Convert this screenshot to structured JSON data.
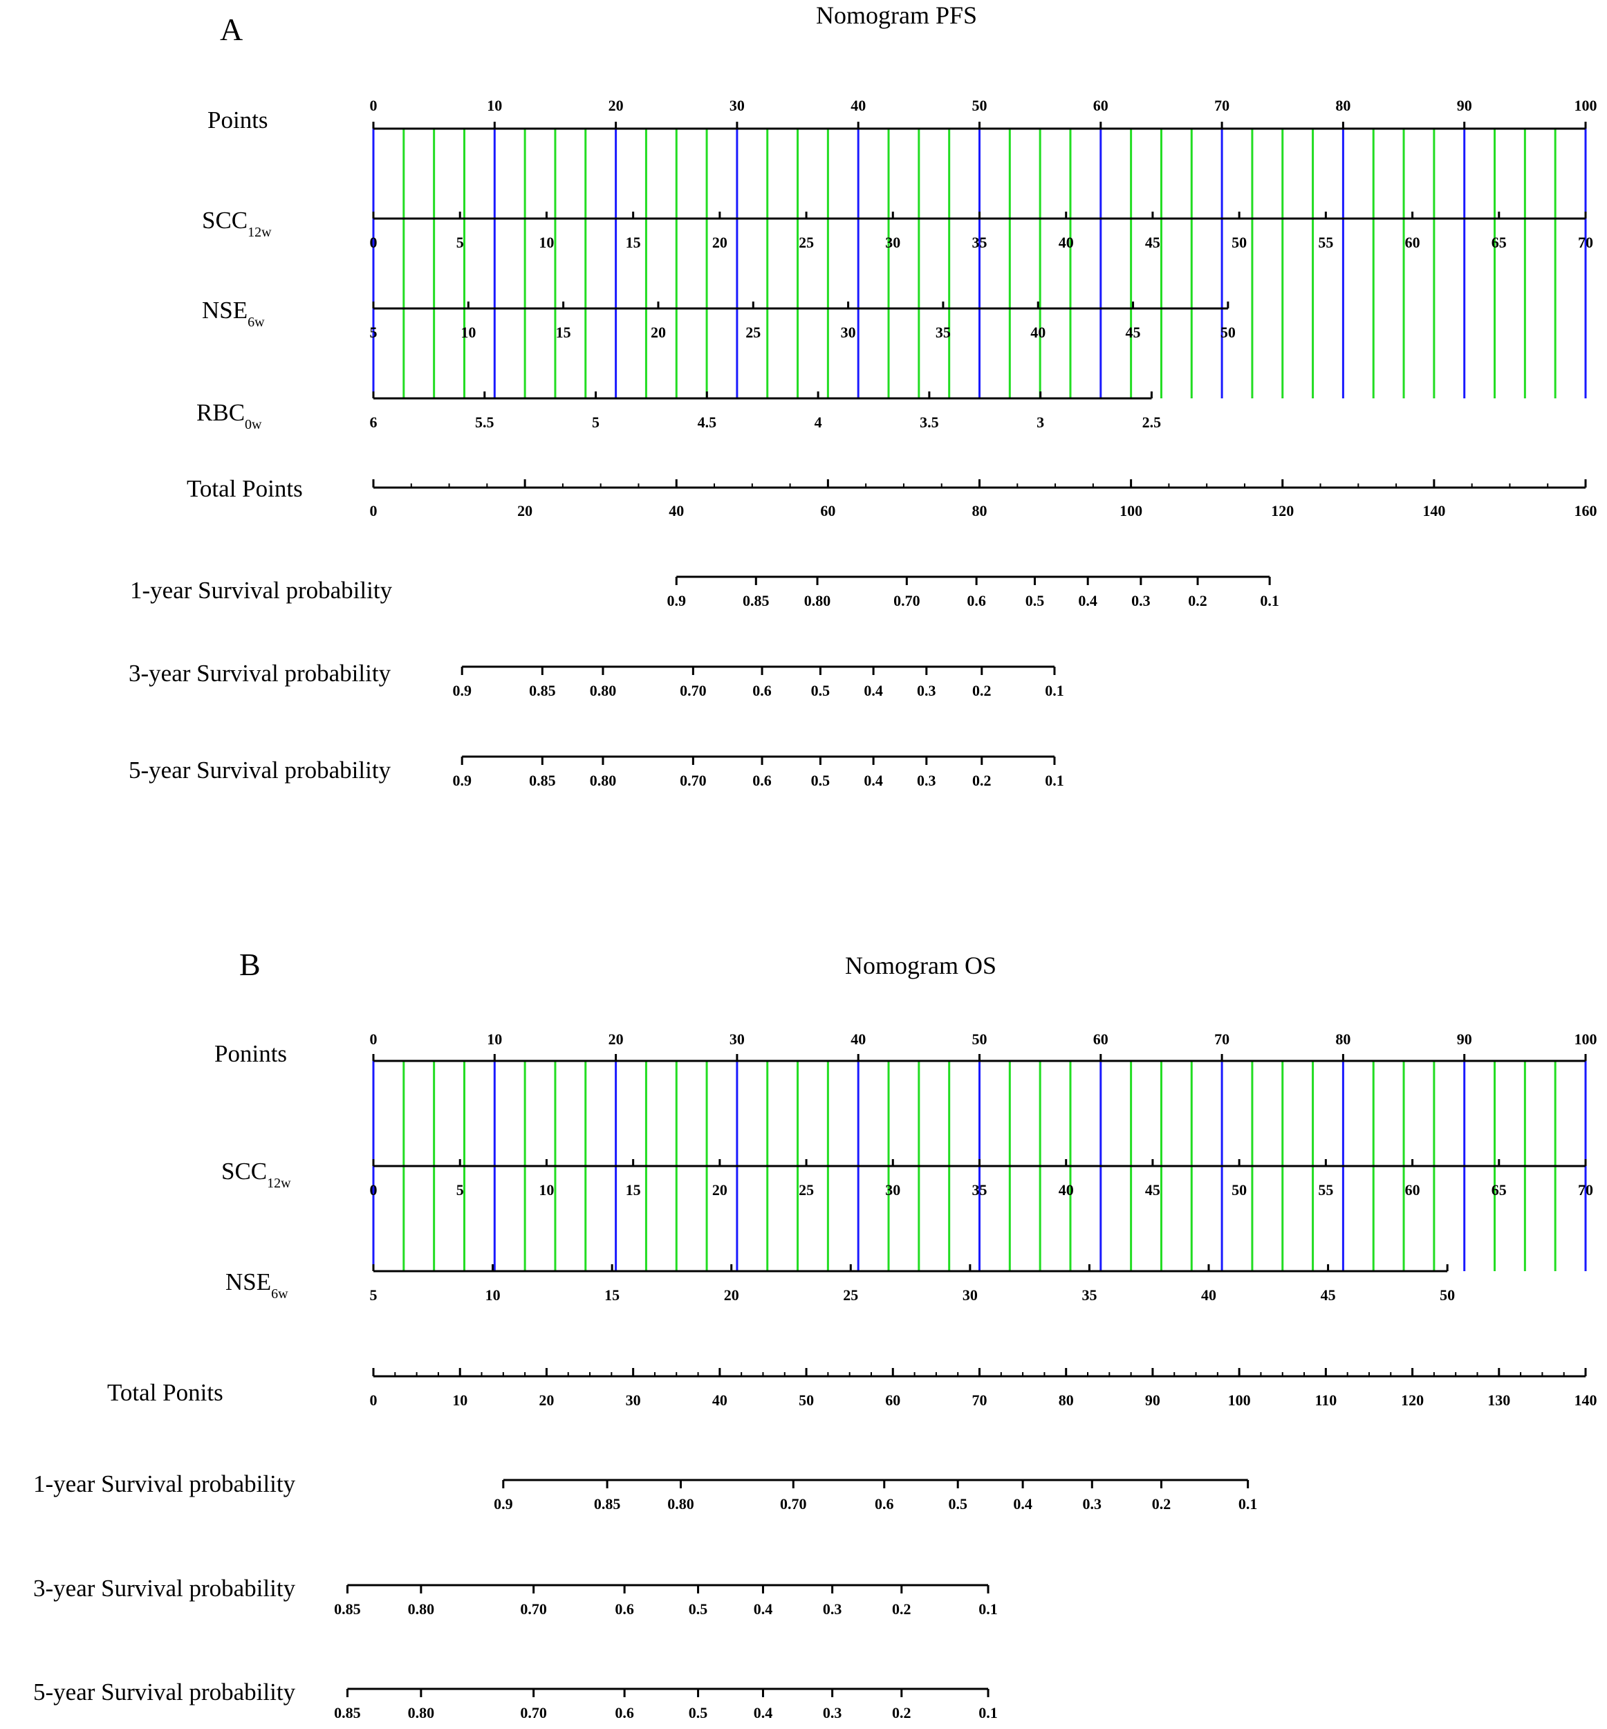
{
  "chart_data": [
    {
      "type": "nomogram",
      "panel": "A",
      "title": "Nomogram PFS",
      "points_axis": {
        "label": "Points",
        "range": [
          0,
          100
        ],
        "ticks": [
          0,
          10,
          20,
          30,
          40,
          50,
          60,
          70,
          80,
          90,
          100
        ]
      },
      "variables": [
        {
          "label": "SCC",
          "subscript": "12w",
          "range": [
            0,
            70
          ],
          "ticks": [
            0,
            5,
            10,
            15,
            20,
            25,
            30,
            35,
            40,
            45,
            50,
            55,
            60,
            65,
            70
          ],
          "points_range": [
            0,
            100
          ]
        },
        {
          "label": "NSE",
          "subscript": "6w",
          "range": [
            5,
            50
          ],
          "ticks": [
            5,
            10,
            15,
            20,
            25,
            30,
            35,
            40,
            45,
            50
          ],
          "points_range": [
            0,
            70.5
          ]
        },
        {
          "label": "RBC",
          "subscript": "0w",
          "range": [
            6,
            2.5
          ],
          "ticks": [
            "6",
            "5.5",
            "5",
            "4.5",
            "4",
            "3.5",
            "3",
            "2.5"
          ],
          "points_range": [
            0,
            64.2
          ]
        }
      ],
      "total_points": {
        "label": "Total Points",
        "range": [
          0,
          160
        ],
        "ticks": [
          0,
          20,
          40,
          60,
          80,
          100,
          120,
          140,
          160
        ]
      },
      "survival": [
        {
          "label": "1-year Survival probability",
          "ticks": [
            {
              "p": "0.9",
              "tp": 40
            },
            {
              "p": "0.85",
              "tp": 50.5
            },
            {
              "p": "0.80",
              "tp": 58.6
            },
            {
              "p": "0.70",
              "tp": 70.4
            },
            {
              "p": "0.6",
              "tp": 79.6
            },
            {
              "p": "0.5",
              "tp": 87.3
            },
            {
              "p": "0.4",
              "tp": 94.3
            },
            {
              "p": "0.3",
              "tp": 101.3
            },
            {
              "p": "0.2",
              "tp": 108.8
            },
            {
              "p": "0.1",
              "tp": 118.3
            }
          ]
        },
        {
          "label": "3-year Survival probability",
          "ticks": [
            {
              "p": "0.9",
              "tp": 11.7
            },
            {
              "p": "0.85",
              "tp": 22.3
            },
            {
              "p": "0.80",
              "tp": 30.3
            },
            {
              "p": "0.70",
              "tp": 42.2
            },
            {
              "p": "0.6",
              "tp": 51.3
            },
            {
              "p": "0.5",
              "tp": 59
            },
            {
              "p": "0.4",
              "tp": 66
            },
            {
              "p": "0.3",
              "tp": 73
            },
            {
              "p": "0.2",
              "tp": 80.3
            },
            {
              "p": "0.1",
              "tp": 89.9
            }
          ]
        },
        {
          "label": "5-year Survival probability",
          "ticks": [
            {
              "p": "0.9",
              "tp": 11.7
            },
            {
              "p": "0.85",
              "tp": 22.3
            },
            {
              "p": "0.80",
              "tp": 30.3
            },
            {
              "p": "0.70",
              "tp": 42.2
            },
            {
              "p": "0.6",
              "tp": 51.3
            },
            {
              "p": "0.5",
              "tp": 59
            },
            {
              "p": "0.4",
              "tp": 66
            },
            {
              "p": "0.3",
              "tp": 73
            },
            {
              "p": "0.2",
              "tp": 80.3
            },
            {
              "p": "0.1",
              "tp": 89.9
            }
          ]
        }
      ]
    },
    {
      "type": "nomogram",
      "panel": "B",
      "title": "Nomogram OS",
      "points_axis": {
        "label": "Ponints",
        "range": [
          0,
          100
        ],
        "ticks": [
          0,
          10,
          20,
          30,
          40,
          50,
          60,
          70,
          80,
          90,
          100
        ]
      },
      "variables": [
        {
          "label": "SCC",
          "subscript": "12w",
          "range": [
            0,
            70
          ],
          "ticks": [
            0,
            5,
            10,
            15,
            20,
            25,
            30,
            35,
            40,
            45,
            50,
            55,
            60,
            65,
            70
          ],
          "points_range": [
            0,
            100
          ]
        },
        {
          "label": "NSE",
          "subscript": "6w",
          "range": [
            5,
            50
          ],
          "ticks": [
            5,
            10,
            15,
            20,
            25,
            30,
            35,
            40,
            45,
            50
          ],
          "points_range": [
            0,
            88.6
          ]
        }
      ],
      "total_points": {
        "label": "Total Ponits",
        "range": [
          0,
          140
        ],
        "ticks": [
          0,
          10,
          20,
          30,
          40,
          50,
          60,
          70,
          80,
          90,
          100,
          110,
          120,
          130,
          140
        ]
      },
      "survival": [
        {
          "label": "1-year Survival probability",
          "ticks": [
            {
              "p": "0.9",
              "tp": 15
            },
            {
              "p": "0.85",
              "tp": 27
            },
            {
              "p": "0.80",
              "tp": 35.5
            },
            {
              "p": "0.70",
              "tp": 48.5
            },
            {
              "p": "0.6",
              "tp": 59
            },
            {
              "p": "0.5",
              "tp": 67.5
            },
            {
              "p": "0.4",
              "tp": 75
            },
            {
              "p": "0.3",
              "tp": 83
            },
            {
              "p": "0.2",
              "tp": 91
            },
            {
              "p": "0.1",
              "tp": 101
            }
          ]
        },
        {
          "label": "3-year Survival probability",
          "ticks": [
            {
              "p": "0.85",
              "tp": -3
            },
            {
              "p": "0.80",
              "tp": 5.5
            },
            {
              "p": "0.70",
              "tp": 18.5
            },
            {
              "p": "0.6",
              "tp": 29
            },
            {
              "p": "0.5",
              "tp": 37.5
            },
            {
              "p": "0.4",
              "tp": 45
            },
            {
              "p": "0.3",
              "tp": 53
            },
            {
              "p": "0.2",
              "tp": 61
            },
            {
              "p": "0.1",
              "tp": 71
            }
          ]
        },
        {
          "label": "5-year Survival probability",
          "ticks": [
            {
              "p": "0.85",
              "tp": -3
            },
            {
              "p": "0.80",
              "tp": 5.5
            },
            {
              "p": "0.70",
              "tp": 18.5
            },
            {
              "p": "0.6",
              "tp": 29
            },
            {
              "p": "0.5",
              "tp": 37.5
            },
            {
              "p": "0.4",
              "tp": 45
            },
            {
              "p": "0.3",
              "tp": 53
            },
            {
              "p": "0.2",
              "tp": 61
            },
            {
              "p": "0.1",
              "tp": 71
            }
          ]
        }
      ]
    }
  ],
  "colors": {
    "axis": "#000000",
    "major_grid": "#1a1aff",
    "minor_grid": "#22dd22"
  }
}
